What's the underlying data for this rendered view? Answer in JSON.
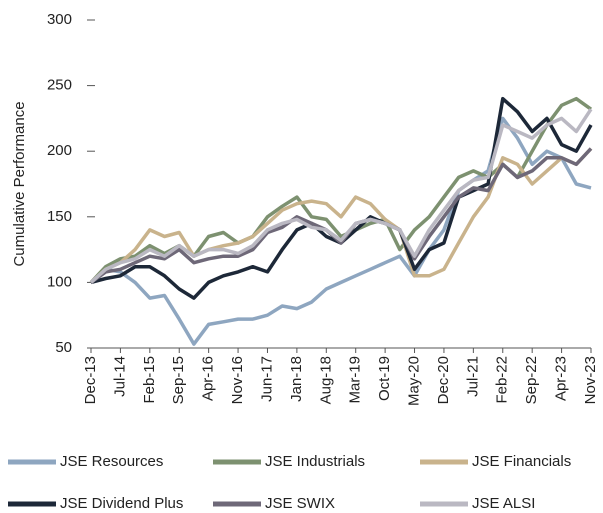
{
  "chart_data": {
    "type": "line",
    "y_label": "Cumulative Performance",
    "categories": [
      "Dec-13",
      null,
      "Jul-14",
      null,
      "Feb-15",
      null,
      "Sep-15",
      null,
      "Apr-16",
      null,
      "Nov-16",
      null,
      "Jun-17",
      null,
      "Jan-18",
      null,
      "Aug-18",
      null,
      "Mar-19",
      null,
      "Oct-19",
      null,
      "May-20",
      null,
      "Dec-20",
      null,
      "Jul-21",
      null,
      "Feb-22",
      null,
      "Sep-22",
      null,
      "Apr-23",
      null,
      "Nov-23"
    ],
    "ylim": [
      50,
      300
    ],
    "yticks": [
      50,
      100,
      150,
      200,
      250,
      300
    ],
    "legend": "bottom",
    "series": [
      {
        "name": "JSE Resources",
        "color": "#8ea6c0",
        "values": [
          100,
          110,
          108,
          100,
          88,
          90,
          72,
          53,
          68,
          70,
          72,
          72,
          75,
          82,
          80,
          85,
          95,
          100,
          105,
          110,
          115,
          120,
          105,
          125,
          140,
          170,
          178,
          185,
          225,
          210,
          190,
          200,
          195,
          175,
          172
        ]
      },
      {
        "name": "JSE Industrials",
        "color": "#7d9170",
        "values": [
          100,
          112,
          118,
          120,
          128,
          122,
          128,
          120,
          135,
          138,
          130,
          135,
          150,
          158,
          165,
          150,
          148,
          135,
          140,
          145,
          148,
          125,
          140,
          150,
          165,
          180,
          185,
          180,
          190,
          180,
          200,
          220,
          235,
          240,
          232
        ]
      },
      {
        "name": "JSE Financials",
        "color": "#c9b38c",
        "values": [
          100,
          110,
          115,
          125,
          140,
          135,
          138,
          120,
          125,
          128,
          130,
          135,
          145,
          155,
          160,
          162,
          160,
          150,
          165,
          160,
          148,
          140,
          105,
          105,
          110,
          130,
          150,
          165,
          195,
          190,
          175,
          185,
          195,
          190,
          202
        ]
      },
      {
        "name": "JSE Dividend Plus",
        "color": "#1d2838",
        "values": [
          100,
          103,
          105,
          112,
          112,
          105,
          95,
          88,
          100,
          105,
          108,
          112,
          108,
          125,
          140,
          145,
          135,
          130,
          140,
          150,
          145,
          140,
          110,
          125,
          130,
          165,
          170,
          175,
          240,
          230,
          215,
          225,
          205,
          200,
          220
        ]
      },
      {
        "name": "JSE SWIX",
        "color": "#6e6878",
        "values": [
          100,
          108,
          110,
          115,
          120,
          118,
          125,
          115,
          118,
          120,
          120,
          125,
          138,
          142,
          150,
          145,
          140,
          130,
          145,
          148,
          145,
          140,
          118,
          135,
          150,
          165,
          172,
          170,
          190,
          180,
          185,
          195,
          195,
          190,
          202
        ]
      },
      {
        "name": "JSE ALSI",
        "color": "#bab8c2",
        "values": [
          100,
          110,
          115,
          118,
          125,
          120,
          128,
          120,
          125,
          125,
          122,
          128,
          140,
          145,
          148,
          142,
          140,
          132,
          145,
          148,
          145,
          140,
          120,
          140,
          155,
          170,
          178,
          180,
          220,
          215,
          210,
          220,
          225,
          215,
          232
        ]
      }
    ]
  }
}
